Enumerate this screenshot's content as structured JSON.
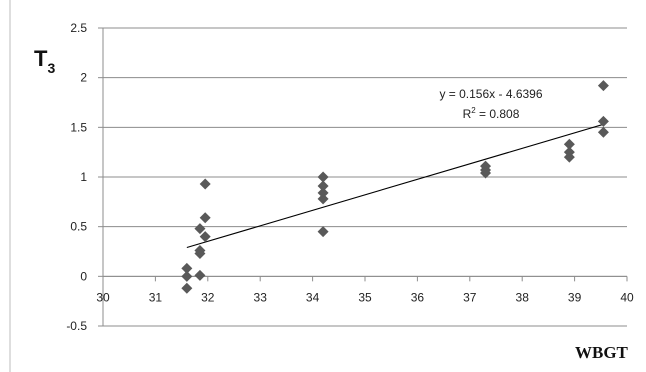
{
  "chart_data": {
    "type": "scatter",
    "xlabel": "WBGT",
    "ylabel": {
      "main": "T",
      "sub": "3"
    },
    "xlim": [
      30,
      40
    ],
    "ylim": [
      -0.5,
      2.5
    ],
    "x_ticks": [
      "30",
      "31",
      "32",
      "33",
      "34",
      "35",
      "36",
      "37",
      "38",
      "39",
      "40"
    ],
    "y_ticks": [
      "-0.5",
      "0",
      "0.5",
      "1",
      "1.5",
      "2",
      "2.5"
    ],
    "grid": "horizontal",
    "marker": "diamond",
    "marker_color": "#595959",
    "trendline_color": "#000000",
    "points": [
      {
        "x": 31.6,
        "y": -0.12
      },
      {
        "x": 31.6,
        "y": 0.0
      },
      {
        "x": 31.6,
        "y": 0.08
      },
      {
        "x": 31.85,
        "y": 0.01
      },
      {
        "x": 31.85,
        "y": 0.23
      },
      {
        "x": 31.85,
        "y": 0.26
      },
      {
        "x": 31.85,
        "y": 0.48
      },
      {
        "x": 31.95,
        "y": 0.4
      },
      {
        "x": 31.95,
        "y": 0.59
      },
      {
        "x": 31.95,
        "y": 0.93
      },
      {
        "x": 34.2,
        "y": 0.45
      },
      {
        "x": 34.2,
        "y": 0.78
      },
      {
        "x": 34.2,
        "y": 0.84
      },
      {
        "x": 34.2,
        "y": 0.91
      },
      {
        "x": 34.2,
        "y": 1.0
      },
      {
        "x": 37.3,
        "y": 1.04
      },
      {
        "x": 37.3,
        "y": 1.07
      },
      {
        "x": 37.3,
        "y": 1.11
      },
      {
        "x": 38.9,
        "y": 1.2
      },
      {
        "x": 38.9,
        "y": 1.25
      },
      {
        "x": 38.9,
        "y": 1.33
      },
      {
        "x": 39.55,
        "y": 1.45
      },
      {
        "x": 39.55,
        "y": 1.56
      },
      {
        "x": 39.55,
        "y": 1.92
      }
    ],
    "trendline": {
      "slope": 0.156,
      "intercept": -4.6396,
      "x_range": [
        31.6,
        39.55
      ],
      "equation": "y = 0.156x - 4.6396",
      "r2": {
        "main": "R",
        "sup": "2",
        "rest": " = 0.808"
      }
    }
  }
}
